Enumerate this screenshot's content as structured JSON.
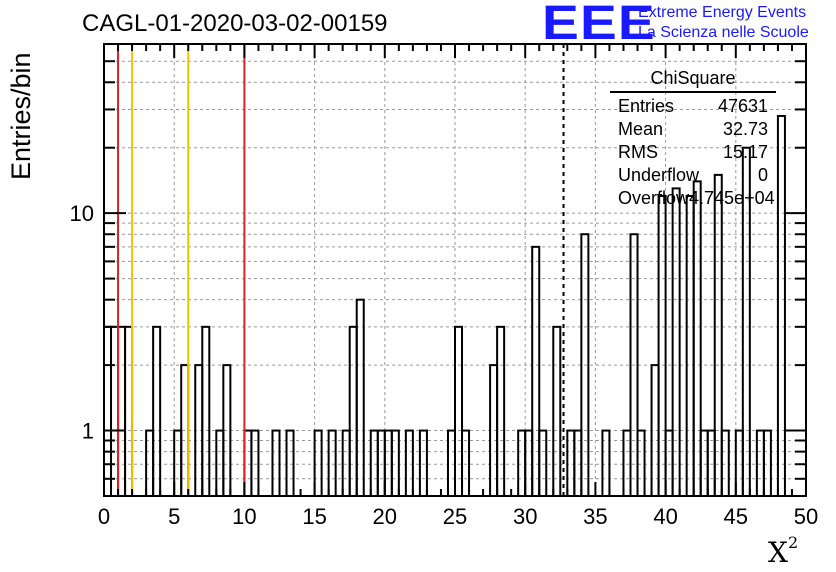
{
  "title": "CAGL-01-2020-03-02-00159",
  "logo": {
    "mark": "EEE",
    "line1": "Extreme Energy Events",
    "line2": "La Scienza nelle Scuole"
  },
  "colors": {
    "cut_red": "#dd2222",
    "cut_yellow": "#f2c200",
    "hist": "#000000",
    "logo": "#1a1aff"
  },
  "stats": {
    "title": "ChiSquare",
    "rows": [
      {
        "label": "Entries",
        "value": "47631"
      },
      {
        "label": "Mean",
        "value": "32.73"
      },
      {
        "label": "RMS",
        "value": "15.17"
      },
      {
        "label": "Underflow",
        "value": "0"
      },
      {
        "label": "Overflow",
        "value": "4.745e+04"
      }
    ]
  },
  "chart_data": {
    "type": "histogram",
    "xlabel": "X",
    "xlabel_superscript": "2",
    "ylabel": "Entries/bin",
    "xlim": [
      0,
      50
    ],
    "ylim": [
      0.5,
      60
    ],
    "ylog": true,
    "grid": true,
    "xticks": [
      "0",
      "5",
      "10",
      "15",
      "20",
      "25",
      "30",
      "35",
      "40",
      "45",
      "50"
    ],
    "yticks": [
      {
        "value": 1,
        "label": "1"
      },
      {
        "value": 10,
        "label": "10"
      }
    ],
    "bin_width": 0.5,
    "bins": [
      [
        0,
        3
      ],
      [
        0.5,
        3
      ],
      [
        1,
        3
      ],
      [
        1.5,
        3
      ],
      [
        3,
        1
      ],
      [
        3.5,
        3
      ],
      [
        5,
        1
      ],
      [
        5.5,
        2
      ],
      [
        6.5,
        2
      ],
      [
        7,
        3
      ],
      [
        8,
        1
      ],
      [
        8.5,
        2
      ],
      [
        10,
        1
      ],
      [
        10.5,
        1
      ],
      [
        12,
        1
      ],
      [
        13,
        1
      ],
      [
        15,
        1
      ],
      [
        16,
        1
      ],
      [
        17,
        1
      ],
      [
        17.5,
        3
      ],
      [
        18,
        4
      ],
      [
        19,
        1
      ],
      [
        19.5,
        1
      ],
      [
        20,
        1
      ],
      [
        20.5,
        1
      ],
      [
        21.5,
        1
      ],
      [
        22.5,
        1
      ],
      [
        24.5,
        1
      ],
      [
        25,
        3
      ],
      [
        25.5,
        1
      ],
      [
        27.5,
        2
      ],
      [
        28,
        3
      ],
      [
        29.5,
        1
      ],
      [
        30,
        1
      ],
      [
        30.5,
        7
      ],
      [
        31,
        1
      ],
      [
        32,
        3
      ],
      [
        33,
        1
      ],
      [
        33.5,
        1
      ],
      [
        34,
        8
      ],
      [
        35.5,
        1
      ],
      [
        37,
        1
      ],
      [
        37.5,
        8
      ],
      [
        38,
        1
      ],
      [
        39,
        2
      ],
      [
        39.5,
        12
      ],
      [
        40,
        1
      ],
      [
        40.5,
        13
      ],
      [
        41.5,
        12
      ],
      [
        42,
        14
      ],
      [
        42.5,
        1
      ],
      [
        43,
        1
      ],
      [
        43.5,
        15
      ],
      [
        44,
        1
      ],
      [
        45,
        1
      ],
      [
        45.5,
        20
      ],
      [
        46.5,
        1
      ],
      [
        47,
        1
      ],
      [
        48,
        28
      ]
    ],
    "vlines": [
      {
        "x": 1,
        "color": "#dd2222",
        "style": "solid"
      },
      {
        "x": 2,
        "color": "#f2c200",
        "style": "solid"
      },
      {
        "x": 6,
        "color": "#f2c200",
        "style": "solid"
      },
      {
        "x": 10,
        "color": "#dd2222",
        "style": "solid"
      },
      {
        "x": 32.73,
        "color": "#000000",
        "style": "dashed"
      }
    ]
  }
}
